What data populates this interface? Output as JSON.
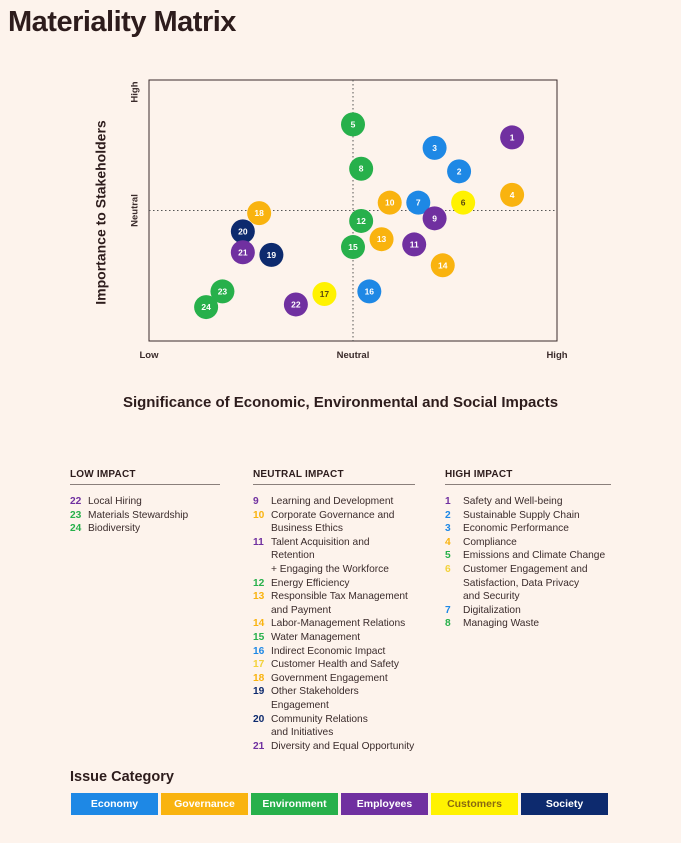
{
  "title": "Materiality Matrix",
  "chart_data": {
    "type": "scatter",
    "xlabel": "Significance of Economic, Environmental and Social Impacts",
    "ylabel": "Importance to Stakeholders",
    "xticks": [
      "Low",
      "Neutral",
      "High"
    ],
    "yticks": [
      "High",
      "Neutral"
    ],
    "xlim": [
      0,
      100
    ],
    "ylim": [
      0,
      100
    ],
    "points": [
      {
        "id": "1",
        "x": 89,
        "y": 78,
        "category": "employees"
      },
      {
        "id": "2",
        "x": 76,
        "y": 65,
        "category": "economy"
      },
      {
        "id": "3",
        "x": 70,
        "y": 74,
        "category": "economy"
      },
      {
        "id": "4",
        "x": 89,
        "y": 56,
        "category": "governance"
      },
      {
        "id": "5",
        "x": 50,
        "y": 83,
        "category": "environment"
      },
      {
        "id": "6",
        "x": 77,
        "y": 53,
        "category": "customers"
      },
      {
        "id": "7",
        "x": 66,
        "y": 53,
        "category": "economy"
      },
      {
        "id": "8",
        "x": 52,
        "y": 66,
        "category": "environment"
      },
      {
        "id": "9",
        "x": 70,
        "y": 47,
        "category": "employees"
      },
      {
        "id": "10",
        "x": 59,
        "y": 53,
        "category": "governance"
      },
      {
        "id": "11",
        "x": 65,
        "y": 37,
        "category": "employees"
      },
      {
        "id": "12",
        "x": 52,
        "y": 46,
        "category": "environment"
      },
      {
        "id": "13",
        "x": 57,
        "y": 39,
        "category": "governance"
      },
      {
        "id": "14",
        "x": 72,
        "y": 29,
        "category": "governance"
      },
      {
        "id": "15",
        "x": 50,
        "y": 36,
        "category": "environment"
      },
      {
        "id": "16",
        "x": 54,
        "y": 19,
        "category": "economy"
      },
      {
        "id": "17",
        "x": 43,
        "y": 18,
        "category": "customers"
      },
      {
        "id": "18",
        "x": 27,
        "y": 49,
        "category": "governance"
      },
      {
        "id": "19",
        "x": 30,
        "y": 33,
        "category": "society"
      },
      {
        "id": "20",
        "x": 23,
        "y": 42,
        "category": "society"
      },
      {
        "id": "21",
        "x": 23,
        "y": 34,
        "category": "employees"
      },
      {
        "id": "22",
        "x": 36,
        "y": 14,
        "category": "employees"
      },
      {
        "id": "23",
        "x": 18,
        "y": 19,
        "category": "environment"
      },
      {
        "id": "24",
        "x": 14,
        "y": 13,
        "category": "environment"
      }
    ]
  },
  "groups": [
    {
      "heading": "LOW IMPACT",
      "items": [
        {
          "num": "22",
          "lines": [
            "Local Hiring"
          ],
          "category": "employees"
        },
        {
          "num": "23",
          "lines": [
            "Materials Stewardship"
          ],
          "category": "environment"
        },
        {
          "num": "24",
          "lines": [
            "Biodiversity"
          ],
          "category": "environment"
        }
      ]
    },
    {
      "heading": "NEUTRAL IMPACT",
      "items": [
        {
          "num": "9",
          "lines": [
            "Learning and Development"
          ],
          "category": "employees"
        },
        {
          "num": "10",
          "lines": [
            "Corporate Governance and",
            "Business Ethics"
          ],
          "category": "governance"
        },
        {
          "num": "11",
          "lines": [
            "Talent Acquisition and Retention",
            "+ Engaging the Workforce"
          ],
          "category": "employees"
        },
        {
          "num": "12",
          "lines": [
            "Energy Efficiency"
          ],
          "category": "environment"
        },
        {
          "num": "13",
          "lines": [
            "Responsible Tax Management",
            "and Payment"
          ],
          "category": "governance"
        },
        {
          "num": "14",
          "lines": [
            "Labor-Management Relations"
          ],
          "category": "governance"
        },
        {
          "num": "15",
          "lines": [
            "Water Management"
          ],
          "category": "environment"
        },
        {
          "num": "16",
          "lines": [
            "Indirect Economic Impact"
          ],
          "category": "economy"
        },
        {
          "num": "17",
          "lines": [
            "Customer Health and Safety"
          ],
          "category": "customers"
        },
        {
          "num": "18",
          "lines": [
            "Government Engagement"
          ],
          "category": "governance"
        },
        {
          "num": "19",
          "lines": [
            "Other Stakeholders Engagement"
          ],
          "category": "society"
        },
        {
          "num": "20",
          "lines": [
            "Community Relations",
            "and Initiatives"
          ],
          "category": "society"
        },
        {
          "num": "21",
          "lines": [
            "Diversity and Equal Opportunity"
          ],
          "category": "employees"
        }
      ]
    },
    {
      "heading": "HIGH IMPACT",
      "items": [
        {
          "num": "1",
          "lines": [
            "Safety and Well-being"
          ],
          "category": "employees"
        },
        {
          "num": "2",
          "lines": [
            "Sustainable Supply Chain"
          ],
          "category": "economy"
        },
        {
          "num": "3",
          "lines": [
            "Economic Performance"
          ],
          "category": "economy"
        },
        {
          "num": "4",
          "lines": [
            "Compliance"
          ],
          "category": "governance"
        },
        {
          "num": "5",
          "lines": [
            "Emissions and Climate Change"
          ],
          "category": "environment"
        },
        {
          "num": "6",
          "lines": [
            "Customer Engagement and",
            "Satisfaction, Data Privacy",
            "and Security"
          ],
          "category": "customers"
        },
        {
          "num": "7",
          "lines": [
            "Digitalization"
          ],
          "category": "economy"
        },
        {
          "num": "8",
          "lines": [
            "Managing Waste"
          ],
          "category": "environment"
        }
      ]
    }
  ],
  "legend_title": "Issue Category",
  "categories": [
    {
      "key": "economy",
      "label": "Economy",
      "color": "#1e88e5",
      "text_color": "#ffffff"
    },
    {
      "key": "governance",
      "label": "Governance",
      "color": "#f9b30f",
      "text_color": "#ffffff"
    },
    {
      "key": "environment",
      "label": "Environment",
      "color": "#27b04b",
      "text_color": "#ffffff"
    },
    {
      "key": "employees",
      "label": "Employees",
      "color": "#7030a0",
      "text_color": "#ffffff"
    },
    {
      "key": "customers",
      "label": "Customers",
      "color": "#fff200",
      "text_color": "#5a4a10"
    },
    {
      "key": "society",
      "label": "Society",
      "color": "#0d2a6e",
      "text_color": "#ffffff"
    }
  ],
  "list_num_colors": {
    "employees": "#7030a0",
    "environment": "#27b04b",
    "governance": "#f9b30f",
    "economy": "#1e88e5",
    "customers": "#f3d23a",
    "society": "#0d2a6e"
  }
}
